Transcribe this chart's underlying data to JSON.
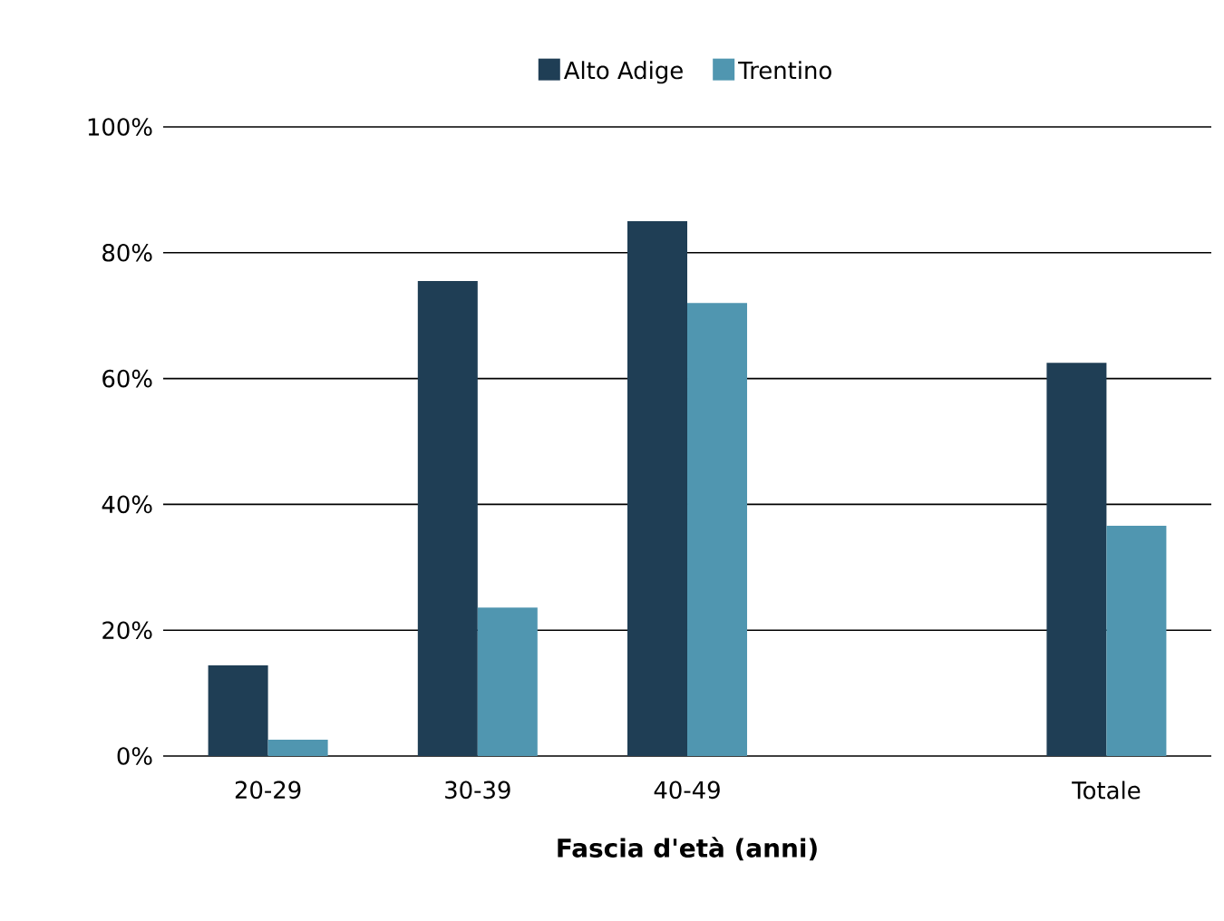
{
  "chart_data": {
    "type": "bar",
    "xlabel": "Fascia d'età (anni)",
    "categories": [
      "20-29",
      "30-39",
      "40-49",
      null,
      "Totale"
    ],
    "series": [
      {
        "name": "Alto Adige",
        "color": "#1f3e55",
        "values": [
          14.4,
          75.5,
          85,
          null,
          62.5
        ]
      },
      {
        "name": "Trentino",
        "color": "#5096b0",
        "values": [
          2.6,
          23.6,
          72,
          null,
          36.6
        ]
      }
    ],
    "ylim": [
      0,
      100
    ],
    "yticks": [
      {
        "value": 0,
        "label": "0%"
      },
      {
        "value": 20,
        "label": "20%"
      },
      {
        "value": 40,
        "label": "40%"
      },
      {
        "value": 60,
        "label": "60%"
      },
      {
        "value": 80,
        "label": "80%"
      },
      {
        "value": 100,
        "label": "100%"
      }
    ],
    "grid": "y",
    "legend": "top"
  }
}
